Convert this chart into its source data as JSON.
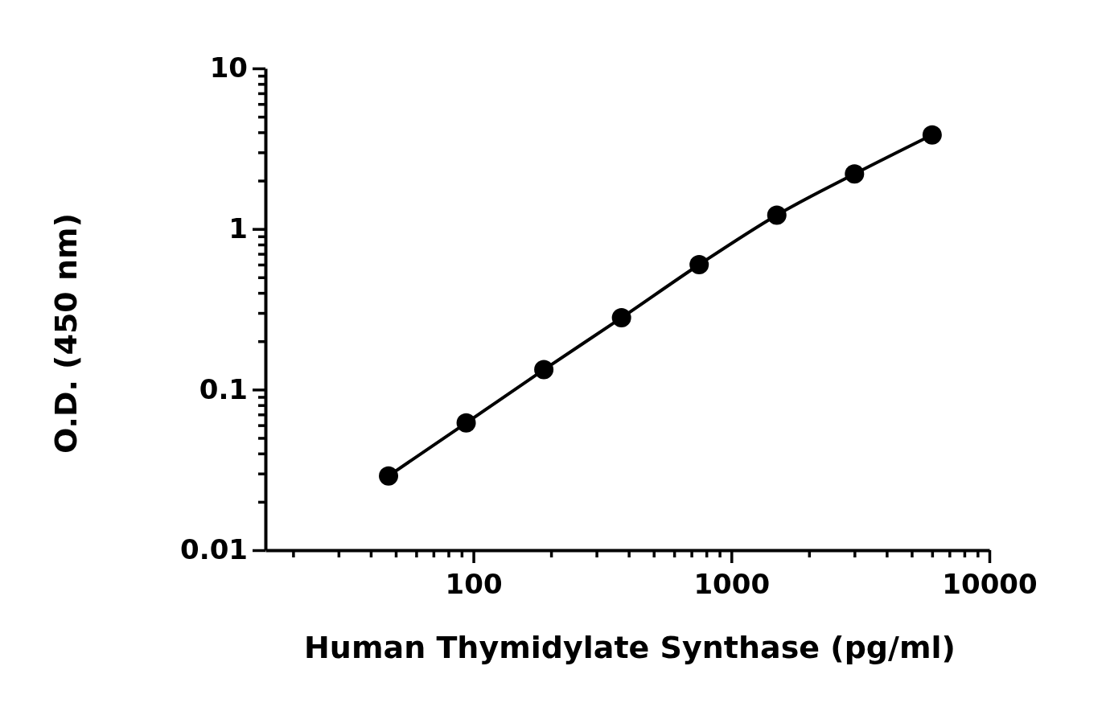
{
  "chart_data": {
    "type": "line",
    "xlabel": "Human Thymidylate Synthase (pg/ml)",
    "ylabel": "O.D. (450 nm)",
    "log": "xy",
    "marker": "circle",
    "line_style": "solid",
    "x": [
      46.875,
      93.75,
      187.5,
      375,
      750,
      1500,
      3000,
      6000
    ],
    "series": [
      {
        "color": "#000000",
        "values": [
          0.029,
          0.062,
          0.133,
          0.28,
          0.6,
          1.22,
          2.2,
          3.85
        ]
      }
    ],
    "xlim": [
      15.625,
      10000
    ],
    "ylim": [
      0.01,
      10
    ],
    "xticks": [
      {
        "value": 20,
        "label": null
      },
      {
        "value": 30,
        "label": null
      },
      {
        "value": 40,
        "label": null
      },
      {
        "value": 50,
        "label": null
      },
      {
        "value": 60,
        "label": null
      },
      {
        "value": 70,
        "label": null
      },
      {
        "value": 80,
        "label": null
      },
      {
        "value": 90,
        "label": null
      },
      100,
      {
        "value": 200,
        "label": null
      },
      {
        "value": 300,
        "label": null
      },
      {
        "value": 400,
        "label": null
      },
      {
        "value": 500,
        "label": null
      },
      {
        "value": 600,
        "label": null
      },
      {
        "value": 700,
        "label": null
      },
      {
        "value": 800,
        "label": null
      },
      {
        "value": 900,
        "label": null
      },
      1000,
      {
        "value": 2000,
        "label": null
      },
      {
        "value": 3000,
        "label": null
      },
      {
        "value": 4000,
        "label": null
      },
      {
        "value": 5000,
        "label": null
      },
      {
        "value": 6000,
        "label": null
      },
      {
        "value": 7000,
        "label": null
      },
      {
        "value": 8000,
        "label": null
      },
      {
        "value": 9000,
        "label": null
      },
      10000
    ],
    "yticks": [
      0.01,
      {
        "value": 0.02,
        "label": null
      },
      {
        "value": 0.03,
        "label": null
      },
      {
        "value": 0.04,
        "label": null
      },
      {
        "value": 0.05,
        "label": null
      },
      {
        "value": 0.06,
        "label": null
      },
      {
        "value": 0.07,
        "label": null
      },
      {
        "value": 0.08,
        "label": null
      },
      {
        "value": 0.09,
        "label": null
      },
      0.1,
      {
        "value": 0.2,
        "label": null
      },
      {
        "value": 0.3,
        "label": null
      },
      {
        "value": 0.4,
        "label": null
      },
      {
        "value": 0.5,
        "label": null
      },
      {
        "value": 0.6,
        "label": null
      },
      {
        "value": 0.7,
        "label": null
      },
      {
        "value": 0.8,
        "label": null
      },
      {
        "value": 0.9,
        "label": null
      },
      1,
      {
        "value": 2,
        "label": null
      },
      {
        "value": 3,
        "label": null
      },
      {
        "value": 4,
        "label": null
      },
      {
        "value": 5,
        "label": null
      },
      {
        "value": 6,
        "label": null
      },
      {
        "value": 7,
        "label": null
      },
      {
        "value": 8,
        "label": null
      },
      {
        "value": 9,
        "label": null
      },
      10
    ]
  }
}
